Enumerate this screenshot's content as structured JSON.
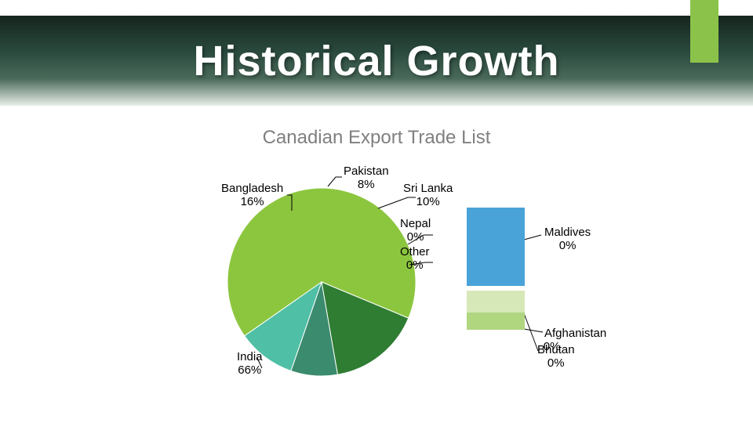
{
  "header": {
    "title": "Historical Growth",
    "title_fontsize": 54,
    "title_color": "#ffffff",
    "band_gradient_from": "#15251e",
    "band_gradient_to": "#e8efe9",
    "accent_color": "#8bc34a"
  },
  "subtitle": {
    "text": "Canadian Export Trade List",
    "fontsize": 24,
    "color": "#808080"
  },
  "chart": {
    "type": "pie",
    "background_color": "#ffffff",
    "slice_border_color": "#ffffff",
    "slice_border_width": 1,
    "categories": [
      "India",
      "Bangladesh",
      "Pakistan",
      "Sri Lanka",
      "Nepal",
      "Other",
      "Afghanistan",
      "Bhutan",
      "Maldives"
    ],
    "values": [
      66,
      16,
      8,
      10,
      0,
      0,
      0,
      0,
      0
    ],
    "colors": [
      "#8cc63f",
      "#2e7d32",
      "#3b8b6f",
      "#4fbfa5",
      "#3b8b6f",
      "#808080",
      "#b0d680",
      "#6aa84f",
      "#4aa3d8"
    ],
    "label_fontsize": 15,
    "label_color": "#000000",
    "leader_color": "#000000"
  },
  "labels": {
    "india": {
      "name": "India",
      "pct": "66%"
    },
    "bangladesh": {
      "name": "Bangladesh",
      "pct": "16%"
    },
    "pakistan": {
      "name": "Pakistan",
      "pct": "8%"
    },
    "srilanka": {
      "name": "Sri Lanka",
      "pct": "10%"
    },
    "nepal": {
      "name": "Nepal",
      "pct": "0%"
    },
    "other": {
      "name": "Other",
      "pct": "0%"
    },
    "maldives": {
      "name": "Maldives",
      "pct": "0%"
    },
    "afghanistan": {
      "name": "Afghanistan",
      "pct": "0%"
    },
    "bhutan": {
      "name": "Bhutan",
      "pct": "0%"
    }
  },
  "legend": {
    "swatches": [
      {
        "color": "#4aa3d8",
        "height": 100
      },
      {
        "color": "#ffffff",
        "height": 6
      },
      {
        "color": "#d7e8b8",
        "height": 28
      },
      {
        "color": "#b0d680",
        "height": 22
      }
    ]
  }
}
